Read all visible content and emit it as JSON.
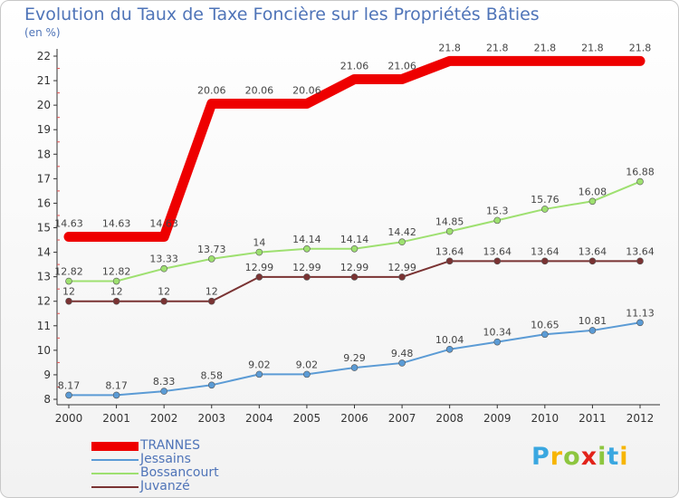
{
  "title": "Evolution du Taux de Taxe Foncière sur les Propriétés Bâties",
  "unit": "(en %)",
  "logo": {
    "letters": [
      "P",
      "r",
      "o",
      "x",
      "i",
      "t",
      "i"
    ],
    "colors": [
      "#3aa7e0",
      "#f7b500",
      "#8dc63f",
      "#e2231a",
      "#8dc63f",
      "#3aa7e0",
      "#f7b500"
    ]
  },
  "chart_data": {
    "type": "line",
    "title": "Evolution du Taux de Taxe Foncière sur les Propriétés Bâties",
    "ylabel": "(en %)",
    "xlabel": "",
    "x": [
      "2000",
      "2001",
      "2002",
      "2003",
      "2004",
      "2005",
      "2006",
      "2007",
      "2008",
      "2009",
      "2010",
      "2011",
      "2012"
    ],
    "ylim": [
      8,
      22
    ],
    "yticks": [
      8,
      9,
      10,
      11,
      12,
      13,
      14,
      15,
      16,
      17,
      18,
      19,
      20,
      21,
      22
    ],
    "grid": false,
    "series": [
      {
        "name": "TRANNES",
        "color": "#ee0000",
        "values": [
          14.63,
          14.63,
          14.63,
          20.06,
          20.06,
          20.06,
          21.06,
          21.06,
          21.8,
          21.8,
          21.8,
          21.8,
          21.8
        ],
        "labels": [
          "14.63",
          "14.63",
          "14.63",
          "20.06",
          "20.06",
          "20.06",
          "21.06",
          "21.06",
          "21.8",
          "21.8",
          "21.8",
          "21.8",
          "21.8"
        ]
      },
      {
        "name": "Jessains",
        "color": "#5b9bd5",
        "values": [
          8.17,
          8.17,
          8.33,
          8.58,
          9.02,
          9.02,
          9.29,
          9.48,
          10.04,
          10.34,
          10.65,
          10.81,
          11.13
        ],
        "labels": [
          "8.17",
          "8.17",
          "8.33",
          "8.58",
          "9.02",
          "9.02",
          "9.29",
          "9.48",
          "10.04",
          "10.34",
          "10.65",
          "10.81",
          "11.13"
        ]
      },
      {
        "name": "Bossancourt",
        "color": "#9ee070",
        "values": [
          12.82,
          12.82,
          13.33,
          13.73,
          14,
          14.14,
          14.14,
          14.42,
          14.85,
          15.3,
          15.76,
          16.08,
          16.88
        ],
        "labels": [
          "12.82",
          "12.82",
          "13.33",
          "13.73",
          "14",
          "14.14",
          "14.14",
          "14.42",
          "14.85",
          "15.3",
          "15.76",
          "16.08",
          "16.88"
        ]
      },
      {
        "name": "Juvanzé",
        "color": "#7a3333",
        "values": [
          12,
          12,
          12,
          12,
          12.99,
          12.99,
          12.99,
          12.99,
          13.64,
          13.64,
          13.64,
          13.64,
          13.64
        ],
        "labels": [
          "12",
          "12",
          "12",
          "12",
          "12.99",
          "12.99",
          "12.99",
          "12.99",
          "13.64",
          "13.64",
          "13.64",
          "13.64",
          "13.64"
        ]
      }
    ]
  }
}
